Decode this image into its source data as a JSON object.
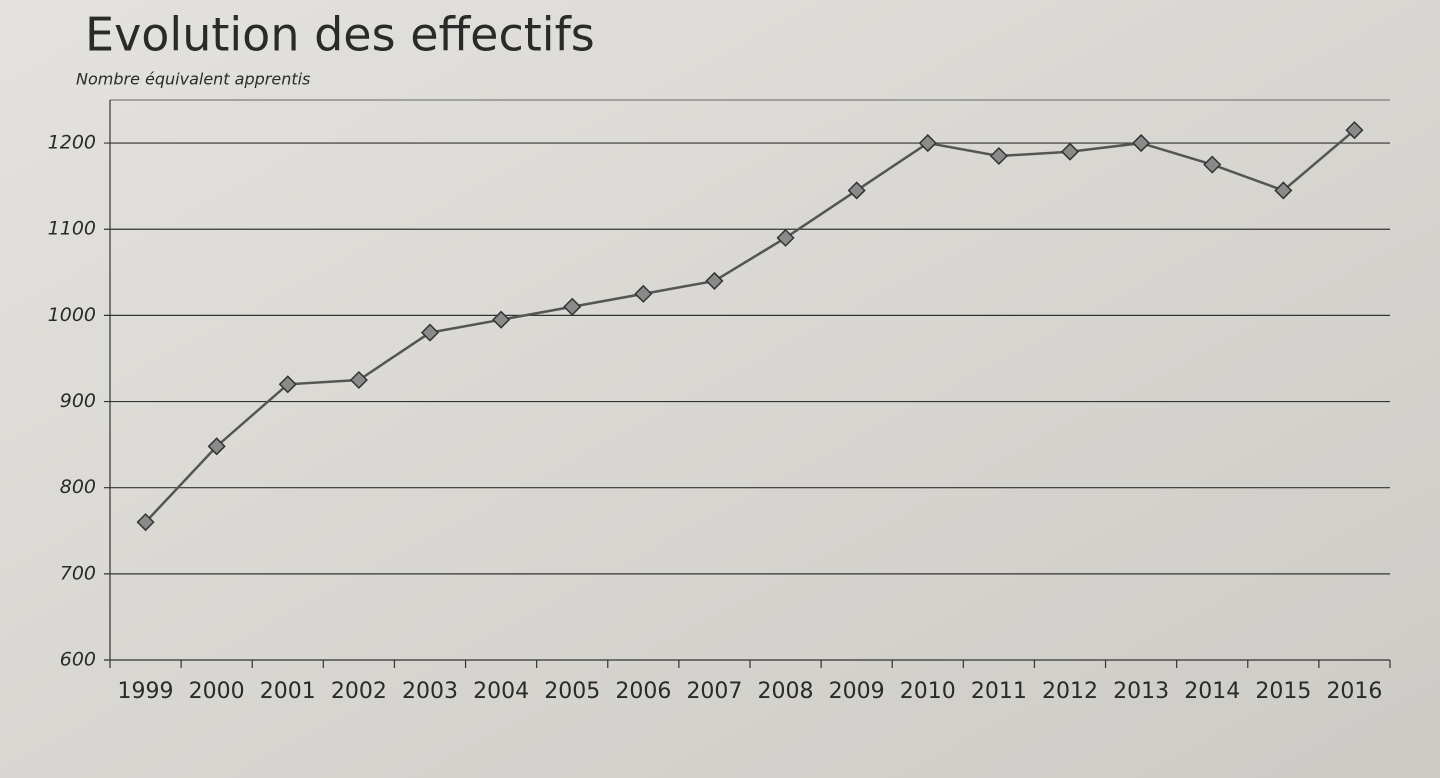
{
  "chart_data": {
    "type": "line",
    "title": "Evolution des effectifs",
    "y_label": "Nombre équivalent apprentis",
    "categories": [
      "1999",
      "2000",
      "2001",
      "2002",
      "2003",
      "2004",
      "2005",
      "2006",
      "2007",
      "2008",
      "2009",
      "2010",
      "2011",
      "2012",
      "2013",
      "2014",
      "2015",
      "2016"
    ],
    "values": [
      760,
      848,
      920,
      925,
      980,
      995,
      1010,
      1025,
      1040,
      1090,
      1145,
      1200,
      1185,
      1190,
      1200,
      1175,
      1145,
      1215
    ],
    "color": "#555555",
    "ylim": [
      600,
      1250
    ],
    "yticks": [
      600,
      700,
      800,
      900,
      1000,
      1100,
      1200
    ],
    "grid": true
  }
}
